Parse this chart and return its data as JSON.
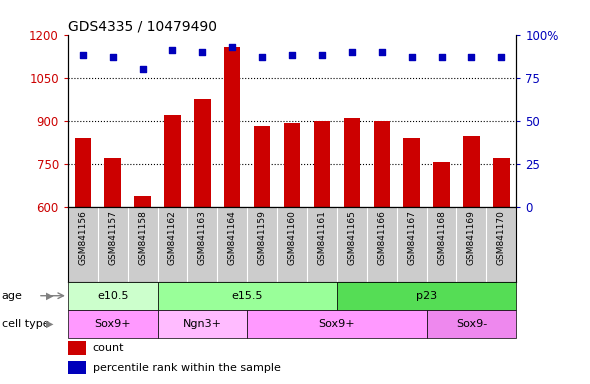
{
  "title": "GDS4335 / 10479490",
  "samples": [
    "GSM841156",
    "GSM841157",
    "GSM841158",
    "GSM841162",
    "GSM841163",
    "GSM841164",
    "GSM841159",
    "GSM841160",
    "GSM841161",
    "GSM841165",
    "GSM841166",
    "GSM841167",
    "GSM841168",
    "GSM841169",
    "GSM841170"
  ],
  "counts": [
    840,
    770,
    635,
    920,
    975,
    1155,
    880,
    890,
    900,
    910,
    900,
    840,
    755,
    845,
    770
  ],
  "percentile": [
    88,
    87,
    80,
    91,
    90,
    93,
    87,
    88,
    88,
    90,
    90,
    87,
    87,
    87,
    87
  ],
  "ylim_left": [
    600,
    1200
  ],
  "ylim_right": [
    0,
    100
  ],
  "yticks_left": [
    600,
    750,
    900,
    1050,
    1200
  ],
  "yticks_right": [
    0,
    25,
    50,
    75,
    100
  ],
  "ytick_right_labels": [
    "0",
    "25",
    "50",
    "75",
    "100%"
  ],
  "bar_color": "#cc0000",
  "dot_color": "#0000bb",
  "age_bands": [
    {
      "label": "e10.5",
      "start": 0,
      "end": 2,
      "color": "#ccffcc"
    },
    {
      "label": "e15.5",
      "start": 3,
      "end": 8,
      "color": "#99ff99"
    },
    {
      "label": "p23",
      "start": 9,
      "end": 14,
      "color": "#55dd55"
    }
  ],
  "cell_bands": [
    {
      "label": "Sox9+",
      "start": 0,
      "end": 2,
      "color": "#ff99ff"
    },
    {
      "label": "Ngn3+",
      "start": 3,
      "end": 5,
      "color": "#ffbbff"
    },
    {
      "label": "Sox9+",
      "start": 6,
      "end": 11,
      "color": "#ff99ff"
    },
    {
      "label": "Sox9-",
      "start": 12,
      "end": 14,
      "color": "#ee88ee"
    }
  ],
  "legend_count_label": "count",
  "legend_pct_label": "percentile rank within the sample",
  "tick_area_color": "#cccccc",
  "gridline_color": "black",
  "gridline_lw": 0.8
}
